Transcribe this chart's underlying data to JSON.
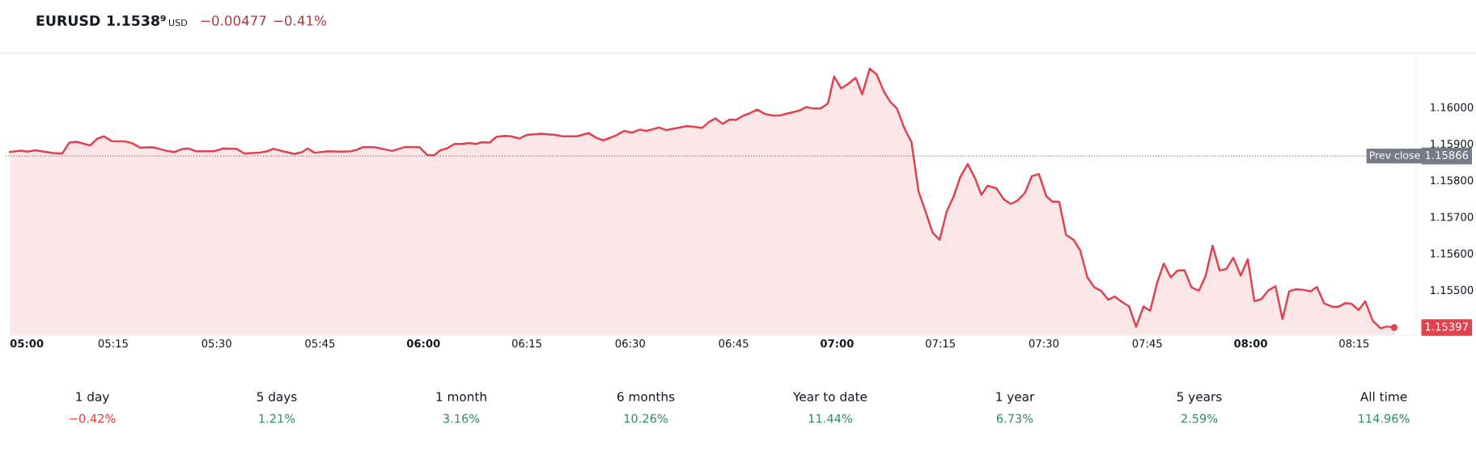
{
  "chart_data": [
    {
      "type": "area",
      "title": "EURUSD",
      "annotations": [
        "1.1538⁹",
        "USD",
        "−0.00477",
        "−0.41%",
        {
          "text": "1.15397",
          "x": 8.347,
          "y": 1.15397
        },
        "1.15866"
      ],
      "series": [
        {
          "color": "#e0434f",
          "x": [
            5.0,
            5.027,
            5.043,
            5.062,
            5.105,
            5.127,
            5.144,
            5.161,
            5.194,
            5.212,
            5.228,
            5.246,
            5.28,
            5.298,
            5.315,
            5.346,
            5.377,
            5.398,
            5.416,
            5.431,
            5.451,
            5.493,
            5.517,
            5.548,
            5.567,
            5.602,
            5.622,
            5.637,
            5.66,
            5.688,
            5.707,
            5.72,
            5.737,
            5.769,
            5.804,
            5.824,
            5.839,
            5.855,
            5.882,
            5.925,
            5.956,
            5.991,
            6.009,
            6.026,
            6.041,
            6.057,
            6.075,
            6.092,
            6.111,
            6.127,
            6.142,
            6.16,
            6.177,
            6.197,
            6.212,
            6.232,
            6.251,
            6.284,
            6.319,
            6.336,
            6.371,
            6.399,
            6.418,
            6.435,
            6.465,
            6.486,
            6.504,
            6.523,
            6.539,
            6.57,
            6.587,
            6.638,
            6.674,
            6.69,
            6.706,
            6.723,
            6.741,
            6.756,
            6.774,
            6.789,
            6.807,
            6.826,
            6.845,
            6.861,
            6.908,
            6.925,
            6.943,
            6.96,
            6.978,
            6.993,
            7.01,
            7.028,
            7.045,
            7.061,
            7.079,
            7.096,
            7.114,
            7.129,
            7.145,
            7.162,
            7.18,
            7.197,
            7.214,
            7.231,
            7.248,
            7.265,
            7.282,
            7.298,
            7.316,
            7.333,
            7.349,
            7.364,
            7.385,
            7.403,
            7.42,
            7.436,
            7.454,
            7.471,
            7.488,
            7.506,
            7.521,
            7.537,
            7.554,
            7.572,
            7.588,
            7.605,
            7.622,
            7.638,
            7.656,
            7.671,
            7.689,
            7.706,
            7.723,
            7.741,
            7.757,
            7.774,
            7.79,
            7.807,
            7.823,
            7.84,
            7.857,
            7.875,
            7.891,
            7.908,
            7.925,
            7.941,
            7.958,
            7.976,
            7.993,
            8.009,
            8.026,
            8.042,
            8.06,
            8.077,
            8.093,
            8.11,
            8.129,
            8.145,
            8.16,
            8.178,
            8.197,
            8.213,
            8.229,
            8.244,
            8.261,
            8.277,
            8.295,
            8.314,
            8.33,
            8.347
          ],
          "values": [
            1.15877,
            1.15881,
            1.15878,
            1.15882,
            1.15874,
            1.15873,
            1.15903,
            1.15905,
            1.15895,
            1.15914,
            1.1592,
            1.15907,
            1.15906,
            1.159,
            1.15889,
            1.1589,
            1.15881,
            1.15877,
            1.15885,
            1.15887,
            1.15879,
            1.15879,
            1.15887,
            1.15886,
            1.15873,
            1.15875,
            1.15879,
            1.15886,
            1.15879,
            1.15872,
            1.15877,
            1.15887,
            1.15875,
            1.15879,
            1.15878,
            1.15879,
            1.15883,
            1.15891,
            1.1589,
            1.1588,
            1.15891,
            1.1589,
            1.15869,
            1.15868,
            1.15882,
            1.15887,
            1.15899,
            1.15899,
            1.15902,
            1.15899,
            1.15904,
            1.15903,
            1.15919,
            1.15921,
            1.1592,
            1.15914,
            1.15924,
            1.15927,
            1.15924,
            1.1592,
            1.1592,
            1.15929,
            1.15916,
            1.15909,
            1.15922,
            1.15935,
            1.1593,
            1.15938,
            1.15935,
            1.15944,
            1.15937,
            1.15948,
            1.15943,
            1.15959,
            1.15969,
            1.15954,
            1.15966,
            1.15965,
            1.15977,
            1.15983,
            1.15993,
            1.15981,
            1.15977,
            1.15977,
            1.1599,
            1.16,
            1.15996,
            1.15996,
            1.1601,
            1.16084,
            1.16051,
            1.16064,
            1.1608,
            1.16035,
            1.16105,
            1.16089,
            1.16041,
            1.16014,
            1.15996,
            1.15944,
            1.15904,
            1.1577,
            1.15714,
            1.15657,
            1.15637,
            1.15714,
            1.15756,
            1.15809,
            1.15844,
            1.15807,
            1.1576,
            1.15785,
            1.15778,
            1.15748,
            1.15735,
            1.15744,
            1.15765,
            1.15811,
            1.15817,
            1.15756,
            1.15741,
            1.15741,
            1.1565,
            1.15637,
            1.15608,
            1.15535,
            1.15507,
            1.15498,
            1.15473,
            1.15482,
            1.15467,
            1.15455,
            1.15399,
            1.15455,
            1.15443,
            1.1552,
            1.15572,
            1.15534,
            1.15553,
            1.15554,
            1.15507,
            1.15498,
            1.15538,
            1.15621,
            1.15553,
            1.15557,
            1.15588,
            1.15539,
            1.15584,
            1.15469,
            1.15475,
            1.15498,
            1.1551,
            1.1542,
            1.15496,
            1.15502,
            1.155,
            1.15496,
            1.15508,
            1.15463,
            1.15454,
            1.15454,
            1.15464,
            1.15462,
            1.15445,
            1.15469,
            1.15416,
            1.15395,
            1.154,
            1.15397
          ]
        }
      ],
      "xlim": [
        4.99,
        8.4
      ],
      "ylim": [
        1.15376,
        1.16147
      ],
      "xticks": [
        {
          "value": 5,
          "label": "05:00"
        },
        {
          "value": 5.25,
          "label": "05:15"
        },
        {
          "value": 5.5,
          "label": "05:30"
        },
        {
          "value": 5.75,
          "label": "05:45"
        },
        {
          "value": 6,
          "label": "06:00"
        },
        {
          "value": 6.25,
          "label": "06:15"
        },
        {
          "value": 6.5,
          "label": "06:30"
        },
        {
          "value": 6.75,
          "label": "06:45"
        },
        {
          "value": 7,
          "label": "07:00"
        },
        {
          "value": 7.25,
          "label": "07:15"
        },
        {
          "value": 7.5,
          "label": "07:30"
        },
        {
          "value": 7.75,
          "label": "07:45"
        },
        {
          "value": 8,
          "label": "08:00"
        },
        {
          "value": 8.25,
          "label": "08:15"
        }
      ],
      "yticks": [
        {
          "value": 1.155,
          "label": "1.15500"
        },
        {
          "value": 1.156,
          "label": "1.15600"
        },
        {
          "value": 1.157,
          "label": "1.15700"
        },
        {
          "value": 1.158,
          "label": "1.15800"
        },
        {
          "value": 1.159,
          "label": "1.15900"
        },
        {
          "value": 1.16,
          "label": "1.16000"
        }
      ],
      "ref_lines": [
        {
          "axis": "y",
          "value": 1.15866,
          "label": "Prev close",
          "color": "#787b86",
          "line_style": "dotted"
        }
      ],
      "grid": false,
      "legend": false,
      "marker": "none",
      "line_style": "solid"
    },
    {
      "type": "other",
      "categories": [
        "1 day",
        "5 days",
        "1 month",
        "6 months",
        "Year to date",
        "1 year",
        "5 years",
        "All time"
      ],
      "value_labels": [
        "−0.42%",
        "1.21%",
        "3.16%",
        "10.26%",
        "11.44%",
        "6.73%",
        "2.59%",
        "114.96%"
      ],
      "colors": [
        "#e53935",
        "#2e8b6e",
        "#2e8b6e",
        "#2e8b6e",
        "#2e8b6e",
        "#2e8b6e",
        "#2e8b6e",
        "#2e8b6e"
      ]
    }
  ]
}
